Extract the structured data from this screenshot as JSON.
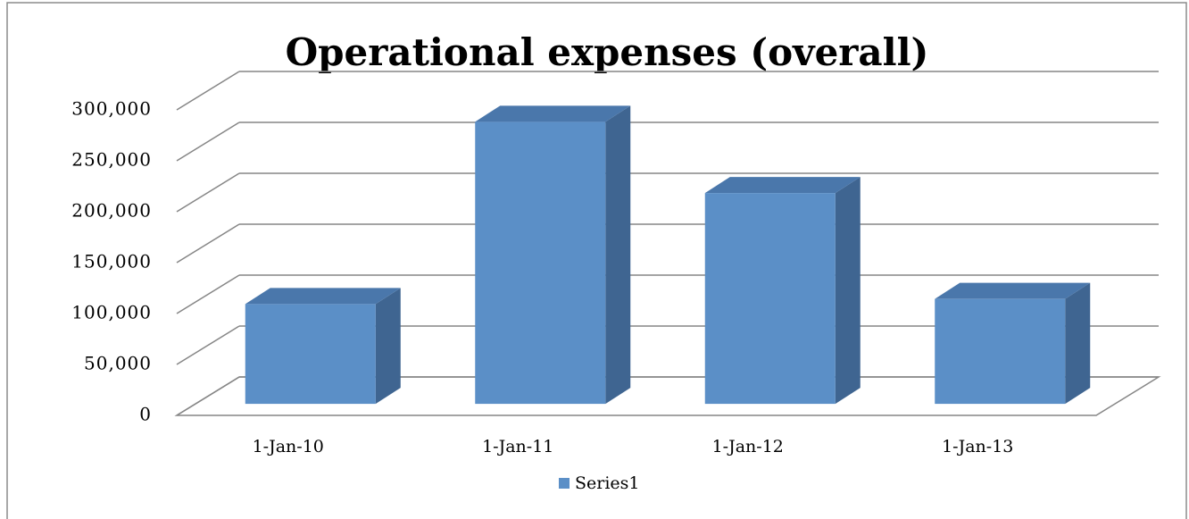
{
  "chart_data": {
    "type": "bar3d",
    "title": "Operational expenses (overall)",
    "categories": [
      "1-Jan-10",
      "1-Jan-11",
      "1-Jan-12",
      "1-Jan-13"
    ],
    "series": [
      {
        "name": "Series1",
        "color": "#5b8fc7",
        "values": [
          98000,
          277000,
          207000,
          103000
        ]
      }
    ],
    "ylim": [
      0,
      300000
    ],
    "yticks": [
      0,
      {
        "value": 50000,
        "label": "50,000"
      },
      {
        "value": 100000,
        "label": "100,000"
      },
      {
        "value": 150000,
        "label": "150,000"
      },
      {
        "value": 200000,
        "label": "200,000"
      },
      {
        "value": 250000,
        "label": "250,000"
      },
      {
        "value": 300000,
        "label": "300,000"
      }
    ],
    "grid": true,
    "legend": "bottom"
  }
}
